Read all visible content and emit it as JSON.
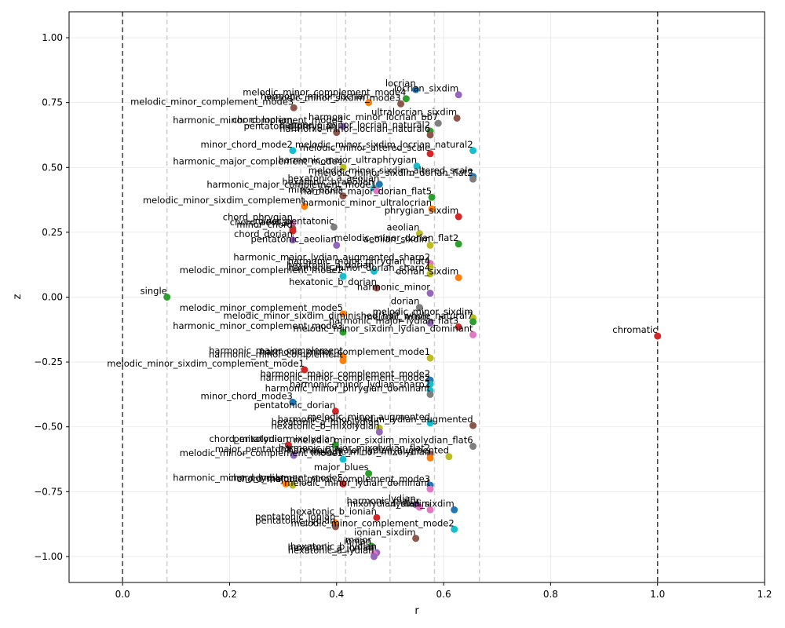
{
  "chart_data": {
    "type": "scatter",
    "xlabel": "r",
    "ylabel": "z",
    "xlim": [
      -0.1,
      1.2
    ],
    "ylim": [
      -1.1,
      1.1
    ],
    "xticks": [
      "0.0",
      "0.2",
      "0.4",
      "0.6",
      "0.8",
      "1.0",
      "1.2"
    ],
    "yticks": [
      "−1.00",
      "−0.75",
      "−0.50",
      "−0.25",
      "0.00",
      "0.25",
      "0.50",
      "0.75",
      "1.00"
    ],
    "xtick_values": [
      0.0,
      0.2,
      0.4,
      0.6,
      0.8,
      1.0,
      1.2
    ],
    "ytick_values": [
      -1.0,
      -0.75,
      -0.5,
      -0.25,
      0.0,
      0.25,
      0.5,
      0.75,
      1.0
    ],
    "grid": true,
    "dark_vlines": [
      0.0,
      1.0
    ],
    "light_vlines": [
      0.083,
      0.333,
      0.417,
      0.5,
      0.583,
      0.667
    ],
    "points": [
      {
        "label": "single",
        "x": 0.083,
        "y": 0.0,
        "color": "#2ca02c"
      },
      {
        "label": "chromatic",
        "x": 1.0,
        "y": -0.15,
        "color": "#d62728"
      },
      {
        "label": "locrian",
        "x": 0.548,
        "y": 0.8,
        "color": "#1f77b4"
      },
      {
        "label": "locrian_sixdim",
        "x": 0.628,
        "y": 0.78,
        "color": "#9467bd"
      },
      {
        "label": "melodic_minor_complement_mode4",
        "x": 0.53,
        "y": 0.765,
        "color": "#2ca02c"
      },
      {
        "label": "melodic_minor_sixdim_mode3",
        "x": 0.52,
        "y": 0.745,
        "color": "#8c564b"
      },
      {
        "label": "melodic_minor_complement_mode3",
        "x": 0.32,
        "y": 0.73,
        "color": "#8c564b"
      },
      {
        "label": "harmonic_minor_locrian",
        "x": 0.46,
        "y": 0.75,
        "color": "#ff7f0e"
      },
      {
        "label": "ultralocrian_sixdim",
        "x": 0.625,
        "y": 0.69,
        "color": "#8c564b"
      },
      {
        "label": "harmonic_minor_locrian_bb7",
        "x": 0.59,
        "y": 0.67,
        "color": "#7f7f7f"
      },
      {
        "label": "chord_locrian",
        "x": 0.318,
        "y": 0.66,
        "color": "#7f7f7f"
      },
      {
        "label": "harmonic_minor_complement_mode4",
        "x": 0.412,
        "y": 0.658,
        "color": "#9467bd"
      },
      {
        "label": "pentatonic_phrygian",
        "x": 0.4,
        "y": 0.635,
        "color": "#8c564b"
      },
      {
        "label": "harmonic_minor_locrian_natural2",
        "x": 0.575,
        "y": 0.64,
        "color": "#2ca02c"
      },
      {
        "label": "harmonic_minor_locrian_natural6",
        "x": 0.575,
        "y": 0.625,
        "color": "#8c564b"
      },
      {
        "label": "minor_chord_mode2",
        "x": 0.318,
        "y": 0.565,
        "color": "#17becf"
      },
      {
        "label": "melodic_minor_sixdim_locrian_natural2",
        "x": 0.655,
        "y": 0.565,
        "color": "#17becf"
      },
      {
        "label": "melodic_minor_altered_scale",
        "x": 0.575,
        "y": 0.553,
        "color": "#d62728"
      },
      {
        "label": "harmonic_major_complement_mode4",
        "x": 0.412,
        "y": 0.5,
        "color": "#bcbd22"
      },
      {
        "label": "harmonic_major_ultraphrygian",
        "x": 0.55,
        "y": 0.505,
        "color": "#17becf"
      },
      {
        "label": "melodic_minor_sixdim_altered_scale",
        "x": 0.655,
        "y": 0.465,
        "color": "#1f77b4"
      },
      {
        "label": "melodic_minor_sixdim_dorian_flat2",
        "x": 0.655,
        "y": 0.455,
        "color": "#7f7f7f"
      },
      {
        "label": "hexatonic_a_aeolian",
        "x": 0.48,
        "y": 0.435,
        "color": "#1f77b4"
      },
      {
        "label": "hexatonic_b_aeolian",
        "x": 0.47,
        "y": 0.42,
        "color": "#17becf"
      },
      {
        "label": "harmonic_major_complement_mode1",
        "x": 0.475,
        "y": 0.41,
        "color": "#e377c2"
      },
      {
        "label": "minor_blues",
        "x": 0.412,
        "y": 0.39,
        "color": "#8c564b"
      },
      {
        "label": "harmonic_major_dorian_flat5",
        "x": 0.578,
        "y": 0.385,
        "color": "#2ca02c"
      },
      {
        "label": "melodic_minor_sixdim_complement",
        "x": 0.34,
        "y": 0.35,
        "color": "#ff7f0e"
      },
      {
        "label": "harmonic_minor_ultralocrian",
        "x": 0.578,
        "y": 0.34,
        "color": "#ff7f0e"
      },
      {
        "label": "phrygian_sixdim",
        "x": 0.628,
        "y": 0.31,
        "color": "#d62728"
      },
      {
        "label": "chord_phrygian",
        "x": 0.318,
        "y": 0.285,
        "color": "#e377c2"
      },
      {
        "label": "minor_pentatonic",
        "x": 0.395,
        "y": 0.27,
        "color": "#7f7f7f"
      },
      {
        "label": "chord_aeolian",
        "x": 0.318,
        "y": 0.265,
        "color": "#8c564b"
      },
      {
        "label": "minor_chord",
        "x": 0.318,
        "y": 0.255,
        "color": "#d62728"
      },
      {
        "label": "aeolian",
        "x": 0.555,
        "y": 0.245,
        "color": "#bcbd22"
      },
      {
        "label": "chord_dorian",
        "x": 0.318,
        "y": 0.22,
        "color": "#9467bd"
      },
      {
        "label": "pentatonic_aeolian",
        "x": 0.4,
        "y": 0.2,
        "color": "#9467bd"
      },
      {
        "label": "aeolian_sixdim",
        "x": 0.575,
        "y": 0.2,
        "color": "#bcbd22"
      },
      {
        "label": "melodic_minor_dorian_flat2",
        "x": 0.628,
        "y": 0.205,
        "color": "#2ca02c"
      },
      {
        "label": "harmonic_major_lydian_augmented_sharp2",
        "x": 0.575,
        "y": 0.13,
        "color": "#e377c2"
      },
      {
        "label": "harmonic_major_phrygian_flat4",
        "x": 0.575,
        "y": 0.115,
        "color": "#bcbd22"
      },
      {
        "label": "hexatonic_a_dorian",
        "x": 0.47,
        "y": 0.1,
        "color": "#17becf"
      },
      {
        "label": "melodic_minor_complement_mode2",
        "x": 0.412,
        "y": 0.08,
        "color": "#17becf"
      },
      {
        "label": "harmonic_minor_dorian_sharp4",
        "x": 0.575,
        "y": 0.09,
        "color": "#bcbd22"
      },
      {
        "label": "dorian_sixdim",
        "x": 0.628,
        "y": 0.075,
        "color": "#ff7f0e"
      },
      {
        "label": "hexatonic_b_dorian",
        "x": 0.475,
        "y": 0.035,
        "color": "#8c564b"
      },
      {
        "label": "harmonic_minor",
        "x": 0.575,
        "y": 0.015,
        "color": "#9467bd"
      },
      {
        "label": "dorian",
        "x": 0.555,
        "y": -0.04,
        "color": "#7f7f7f"
      },
      {
        "label": "melodic_minor_complement_mode5",
        "x": 0.412,
        "y": -0.065,
        "color": "#ff7f0e"
      },
      {
        "label": "melodic_minor",
        "x": 0.575,
        "y": -0.1,
        "color": "#9467bd"
      },
      {
        "label": "melodic_minor_sixdim",
        "x": 0.655,
        "y": -0.08,
        "color": "#bcbd22"
      },
      {
        "label": "melodic_minor_sixdim_diminished_half_whole_natural7",
        "x": 0.655,
        "y": -0.095,
        "color": "#2ca02c"
      },
      {
        "label": "harmonic_major_lydian_flat3",
        "x": 0.628,
        "y": -0.115,
        "color": "#d62728"
      },
      {
        "label": "harmonic_minor_complement_mode3",
        "x": 0.412,
        "y": -0.135,
        "color": "#2ca02c"
      },
      {
        "label": "melodic_minor_sixdim_lydian_dominant",
        "x": 0.655,
        "y": -0.145,
        "color": "#e377c2"
      },
      {
        "label": "harmonic_major_complement",
        "x": 0.412,
        "y": -0.23,
        "color": "#ff7f0e"
      },
      {
        "label": "harmonic_minor_complement",
        "x": 0.412,
        "y": -0.245,
        "color": "#ff7f0e"
      },
      {
        "label": "harmonic_minor_complement_mode1",
        "x": 0.575,
        "y": -0.235,
        "color": "#bcbd22"
      },
      {
        "label": "melodic_minor_sixdim_complement_mode1",
        "x": 0.34,
        "y": -0.28,
        "color": "#d62728"
      },
      {
        "label": "harmonic_major_complement_mode2",
        "x": 0.575,
        "y": -0.32,
        "color": "#1f77b4"
      },
      {
        "label": "harmonic_minor_complement_mode2",
        "x": 0.575,
        "y": -0.335,
        "color": "#17becf"
      },
      {
        "label": "harmonic_minor_lydian_sharp2",
        "x": 0.575,
        "y": -0.36,
        "color": "#17becf"
      },
      {
        "label": "harmonic_minor_phrygian_dominant",
        "x": 0.575,
        "y": -0.375,
        "color": "#7f7f7f"
      },
      {
        "label": "minor_chord_mode3",
        "x": 0.318,
        "y": -0.405,
        "color": "#1f77b4"
      },
      {
        "label": "pentatonic_dorian",
        "x": 0.398,
        "y": -0.44,
        "color": "#d62728"
      },
      {
        "label": "melodic_minor_augmented",
        "x": 0.575,
        "y": -0.485,
        "color": "#17becf"
      },
      {
        "label": "harmonic_minor_sixdim_lydian_augmented",
        "x": 0.655,
        "y": -0.495,
        "color": "#8c564b"
      },
      {
        "label": "hexatonic_a_mixolydian",
        "x": 0.48,
        "y": -0.505,
        "color": "#bcbd22"
      },
      {
        "label": "hexatonic_b_mixolydian",
        "x": 0.48,
        "y": -0.52,
        "color": "#9467bd"
      },
      {
        "label": "chord_mixolydian",
        "x": 0.31,
        "y": -0.57,
        "color": "#d62728"
      },
      {
        "label": "pentatonic_mixolydian",
        "x": 0.398,
        "y": -0.57,
        "color": "#2ca02c"
      },
      {
        "label": "melodic_minor_sixdim_mixolydian_flat6",
        "x": 0.655,
        "y": -0.575,
        "color": "#7f7f7f"
      },
      {
        "label": "major_pentatonic",
        "x": 0.32,
        "y": -0.61,
        "color": "#9467bd"
      },
      {
        "label": "harmonic_major_mixolydian_flat2",
        "x": 0.575,
        "y": -0.605,
        "color": "#8c564b"
      },
      {
        "label": "melodic_minor_complement_mode1",
        "x": 0.412,
        "y": -0.625,
        "color": "#17becf"
      },
      {
        "label": "melodic_minor_mixolydian",
        "x": 0.575,
        "y": -0.62,
        "color": "#ff7f0e"
      },
      {
        "label": "harmonic_major_lydian_augmented",
        "x": 0.61,
        "y": -0.615,
        "color": "#bcbd22"
      },
      {
        "label": "major_blues",
        "x": 0.46,
        "y": -0.68,
        "color": "#2ca02c"
      },
      {
        "label": "chord_lydian",
        "x": 0.305,
        "y": -0.72,
        "color": "#ff7f0e"
      },
      {
        "label": "chord_major",
        "x": 0.318,
        "y": -0.725,
        "color": "#bcbd22"
      },
      {
        "label": "harmonic_minor_complement_mode5",
        "x": 0.412,
        "y": -0.72,
        "color": "#d62728"
      },
      {
        "label": "melodic_minor_complement_mode3",
        "x": 0.575,
        "y": -0.725,
        "color": "#1f77b4"
      },
      {
        "label": "melodic_minor_lydian_dominant",
        "x": 0.575,
        "y": -0.74,
        "color": "#e377c2"
      },
      {
        "label": "lydian",
        "x": 0.548,
        "y": -0.8,
        "color": "#9467bd"
      },
      {
        "label": "harmonic_major",
        "x": 0.555,
        "y": -0.81,
        "color": "#e377c2"
      },
      {
        "label": "mixolydian_sixdim",
        "x": 0.575,
        "y": -0.82,
        "color": "#e377c2"
      },
      {
        "label": "lydian_sixdim",
        "x": 0.62,
        "y": -0.82,
        "color": "#1f77b4"
      },
      {
        "label": "pentatonic_ionian",
        "x": 0.398,
        "y": -0.87,
        "color": "#ff7f0e"
      },
      {
        "label": "hexatonic_b_ionian",
        "x": 0.475,
        "y": -0.85,
        "color": "#d62728"
      },
      {
        "label": "pentatonic_lydian",
        "x": 0.398,
        "y": -0.885,
        "color": "#8c564b"
      },
      {
        "label": "melodic_minor_complement_mode2",
        "x": 0.62,
        "y": -0.895,
        "color": "#17becf"
      },
      {
        "label": "ionian_sixdim",
        "x": 0.548,
        "y": -0.93,
        "color": "#8c564b"
      },
      {
        "label": "major",
        "x": 0.465,
        "y": -0.96,
        "color": "#2ca02c"
      },
      {
        "label": "ionian",
        "x": 0.465,
        "y": -0.965,
        "color": "#7f7f7f"
      },
      {
        "label": "hexatonic_b_lydian",
        "x": 0.475,
        "y": -0.985,
        "color": "#9467bd"
      },
      {
        "label": "hexatonic_a_ionian",
        "x": 0.47,
        "y": -0.99,
        "color": "#e377c2"
      },
      {
        "label": "hexatonic_a_lydian",
        "x": 0.47,
        "y": -1.0,
        "color": "#9467bd"
      }
    ]
  }
}
